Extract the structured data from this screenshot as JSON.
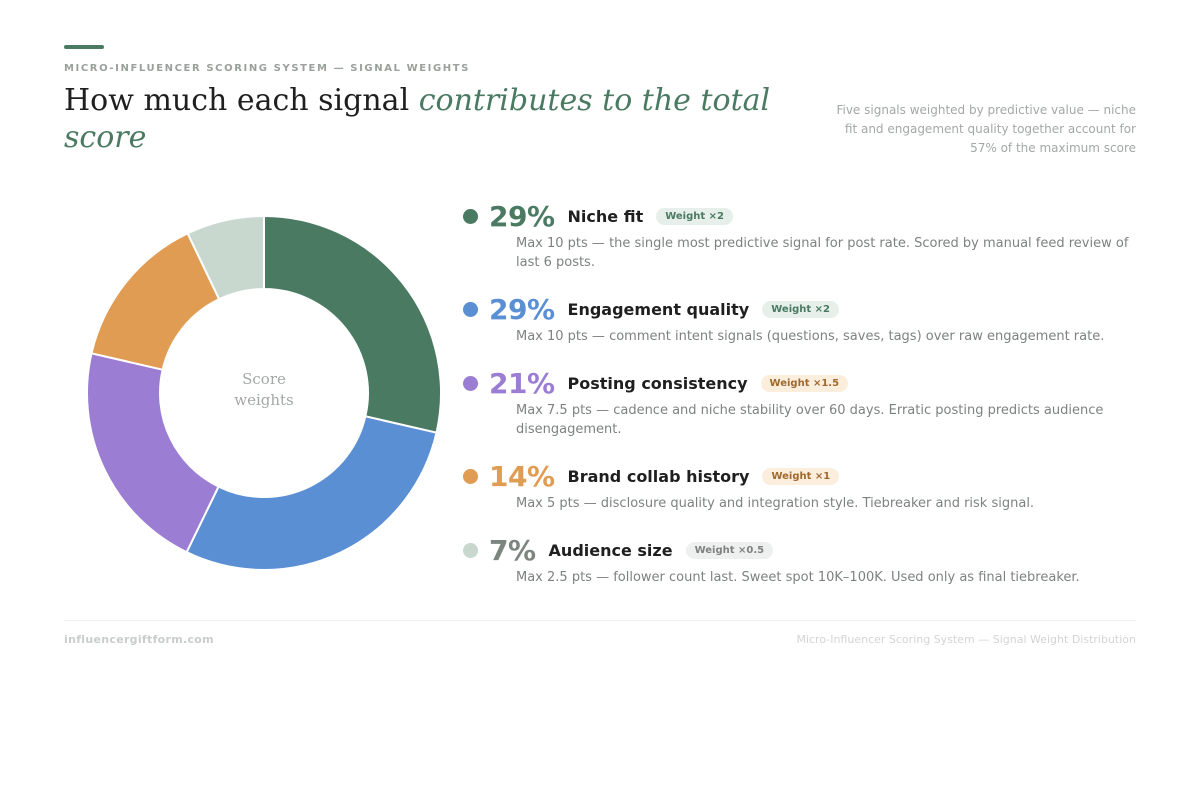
{
  "header": {
    "eyebrow": "MICRO-INFLUENCER SCORING SYSTEM — SIGNAL WEIGHTS",
    "title_plain": "How much each signal ",
    "title_emphasis": "contributes to the total score",
    "subtitle": "Five signals weighted by predictive value — niche fit and engagement quality together account for 57% of the maximum score"
  },
  "chart_data": {
    "type": "pie",
    "style": "donut",
    "center_label_line1": "Score",
    "center_label_line2": "weights",
    "categories": [
      "Niche fit",
      "Engagement quality",
      "Posting consistency",
      "Brand collab history",
      "Audience size"
    ],
    "values": [
      28.6,
      28.6,
      21.4,
      14.3,
      7.1
    ],
    "colors": [
      "#4a7a62",
      "#5b8fd4",
      "#9b7dd4",
      "#e09c52",
      "#c8d8cf"
    ]
  },
  "signals": [
    {
      "pct": "29%",
      "name": "Niche fit",
      "weight": "Weight ×2",
      "desc": "Max 10 pts — the single most predictive signal for post rate. Scored by manual feed review of last 6 posts.",
      "color": "#4a7a62",
      "pct_color": "#4a7a62",
      "badge_bg": "#e6efe9",
      "badge_fg": "#4a7a62"
    },
    {
      "pct": "29%",
      "name": "Engagement quality",
      "weight": "Weight ×2",
      "desc": "Max 10 pts — comment intent signals (questions, saves, tags) over raw engagement rate.",
      "color": "#5b8fd4",
      "pct_color": "#5b8fd4",
      "badge_bg": "#e6efe9",
      "badge_fg": "#4a7a62"
    },
    {
      "pct": "21%",
      "name": "Posting consistency",
      "weight": "Weight ×1.5",
      "desc": "Max 7.5 pts — cadence and niche stability over 60 days. Erratic posting predicts audience disengagement.",
      "color": "#9b7dd4",
      "pct_color": "#9b7dd4",
      "badge_bg": "#fbeedd",
      "badge_fg": "#a0692e"
    },
    {
      "pct": "14%",
      "name": "Brand collab history",
      "weight": "Weight ×1",
      "desc": "Max 5 pts — disclosure quality and integration style. Tiebreaker and risk signal.",
      "color": "#e09c52",
      "pct_color": "#e09c52",
      "badge_bg": "#fbeedd",
      "badge_fg": "#a0692e"
    },
    {
      "pct": "7%",
      "name": "Audience size",
      "weight": "Weight ×0.5",
      "desc": "Max 2.5 pts — follower count last. Sweet spot 10K–100K. Used only as final tiebreaker.",
      "color": "#c8d8cf",
      "pct_color": "#7d8580",
      "badge_bg": "#eef0ef",
      "badge_fg": "#7d8280"
    }
  ],
  "footer": {
    "left": "influencergiftform.com",
    "right": "Micro-Influencer Scoring System — Signal Weight Distribution"
  }
}
